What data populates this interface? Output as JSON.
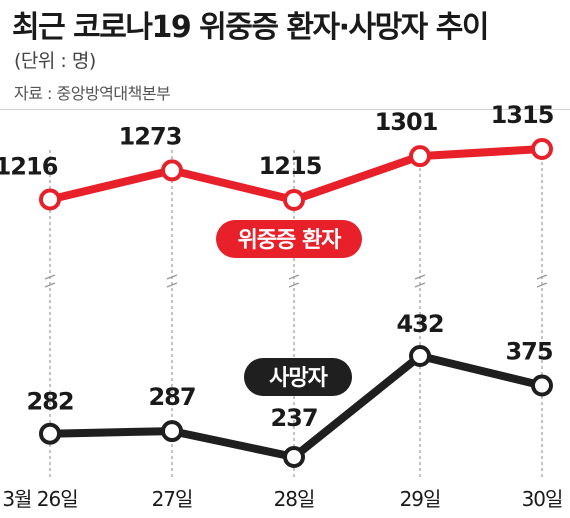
{
  "header": {
    "title": "최근 코로나19 위중증 환자·사망자 추이",
    "unit": "(단위 : 명)",
    "source": "자료 : 중앙방역대책본부"
  },
  "colors": {
    "severe": "#e8202a",
    "deaths": "#1f1f1f",
    "tag_severe_bg": "#e8202a",
    "tag_deaths_bg": "#1f1f1f"
  },
  "chart_data": {
    "type": "line",
    "categories": [
      "3월 26일",
      "27일",
      "28일",
      "29일",
      "30일"
    ],
    "series": [
      {
        "name": "위중증 환자",
        "values": [
          1216,
          1273,
          1215,
          1301,
          1315
        ]
      },
      {
        "name": "사망자",
        "values": [
          282,
          287,
          237,
          432,
          375
        ]
      }
    ],
    "broken_y_axis": true,
    "grid": "dashed vertical lines"
  }
}
